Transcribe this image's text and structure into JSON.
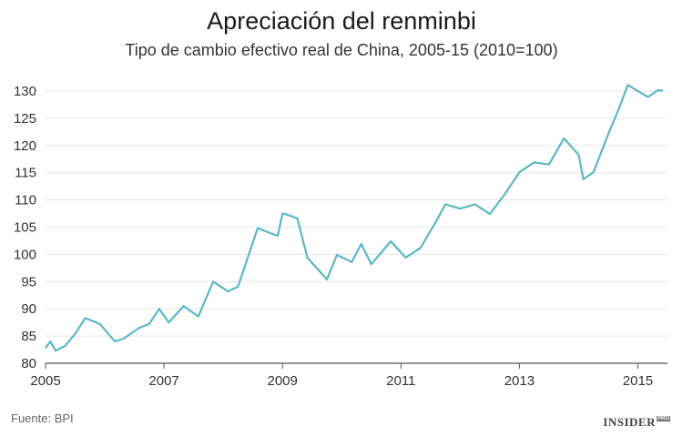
{
  "chart_data": {
    "type": "line",
    "title": "Apreciación del renminbi",
    "subtitle": "Tipo de cambio efectivo real de China, 2005-15 (2010=100)",
    "source": "Fuente: BPI",
    "brand": "INSIDER",
    "brand_suffix": "PRO",
    "xlabel": "",
    "ylabel": "",
    "xlim": [
      2005,
      2015.5
    ],
    "ylim": [
      80,
      130
    ],
    "grid": true,
    "line_color": "#5cb8c2",
    "x_ticks": [
      {
        "value": 2005,
        "label": "2005"
      },
      {
        "value": 2007,
        "label": "2007"
      },
      {
        "value": 2009,
        "label": "2009"
      },
      {
        "value": 2011,
        "label": "2011"
      },
      {
        "value": 2013,
        "label": "2013"
      },
      {
        "value": 2015,
        "label": "2015"
      }
    ],
    "y_ticks": [
      {
        "value": 80,
        "label": "80"
      },
      {
        "value": 85,
        "label": "85"
      },
      {
        "value": 90,
        "label": "90"
      },
      {
        "value": 95,
        "label": "95"
      },
      {
        "value": 100,
        "label": "100"
      },
      {
        "value": 105,
        "label": "105"
      },
      {
        "value": 110,
        "label": "110"
      },
      {
        "value": 115,
        "label": "115"
      },
      {
        "value": 120,
        "label": "120"
      },
      {
        "value": 125,
        "label": "125"
      },
      {
        "value": 130,
        "label": "130"
      }
    ],
    "series": [
      {
        "x": [
          2005.0,
          2005.08,
          2005.17,
          2005.33,
          2005.5,
          2005.67,
          2005.92,
          2006.17,
          2006.33,
          2006.58,
          2006.75,
          2006.92,
          2007.08,
          2007.33,
          2007.58,
          2007.83,
          2008.08,
          2008.25,
          2008.58,
          2008.92,
          2009.0,
          2009.08,
          2009.25,
          2009.42,
          2009.75,
          2009.92,
          2010.17,
          2010.33,
          2010.5,
          2010.83,
          2011.08,
          2011.33,
          2011.58,
          2011.75,
          2012.0,
          2012.25,
          2012.5,
          2012.75,
          2013.0,
          2013.25,
          2013.5,
          2013.75,
          2014.0,
          2014.08,
          2014.25,
          2014.5,
          2014.67,
          2014.83,
          2015.17,
          2015.33,
          2015.42
        ],
        "y": [
          82.8,
          84.0,
          82.3,
          83.2,
          85.4,
          88.3,
          87.2,
          84.0,
          84.6,
          86.5,
          87.2,
          90.0,
          87.5,
          90.5,
          88.6,
          95.0,
          93.2,
          94.1,
          104.8,
          103.4,
          107.5,
          107.3,
          106.6,
          99.4,
          95.4,
          99.9,
          98.6,
          101.9,
          98.2,
          102.4,
          99.4,
          101.2,
          105.8,
          109.2,
          108.4,
          109.2,
          107.4,
          111.0,
          115.1,
          116.9,
          116.5,
          121.3,
          118.3,
          113.8,
          115.1,
          122.1,
          126.5,
          131.1,
          128.9,
          130.1,
          130.1
        ]
      }
    ]
  }
}
